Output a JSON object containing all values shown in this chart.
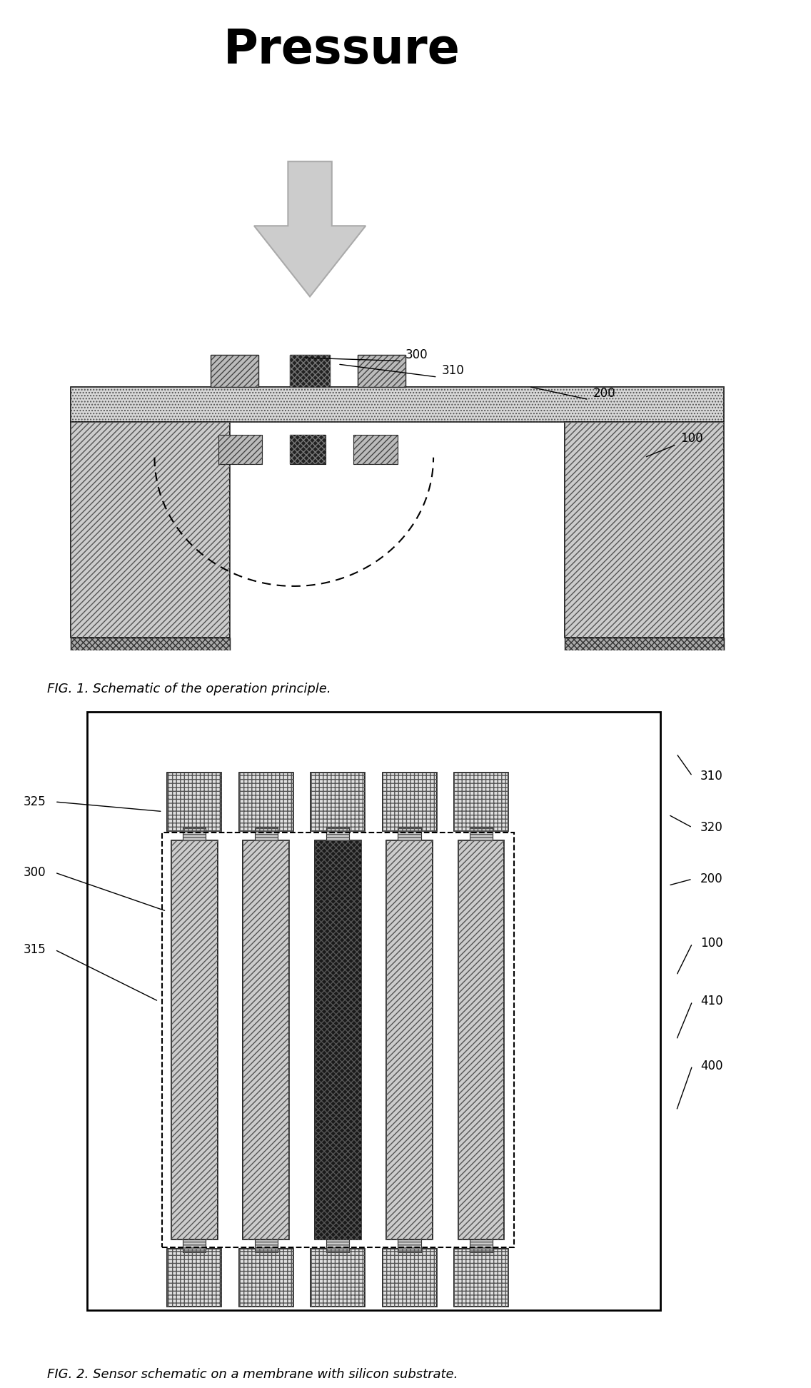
{
  "fig_width": 12.4,
  "fig_height": 19.59,
  "bg_color": "#ffffff",
  "fig1_caption": "FIG. 1. Schematic of the operation principle.",
  "fig2_caption": "FIG. 2. Sensor schematic on a membrane with silicon substrate.",
  "title": "Pressure",
  "colors": {
    "hatch_fill": "#cccccc",
    "dark_element": "#222222",
    "arrow_fill": "#cccccc",
    "arrow_edge": "#999999",
    "white": "#ffffff",
    "black": "#000000",
    "mem_fill": "#d8d8d8",
    "pad_fill": "#e0e0e0"
  }
}
